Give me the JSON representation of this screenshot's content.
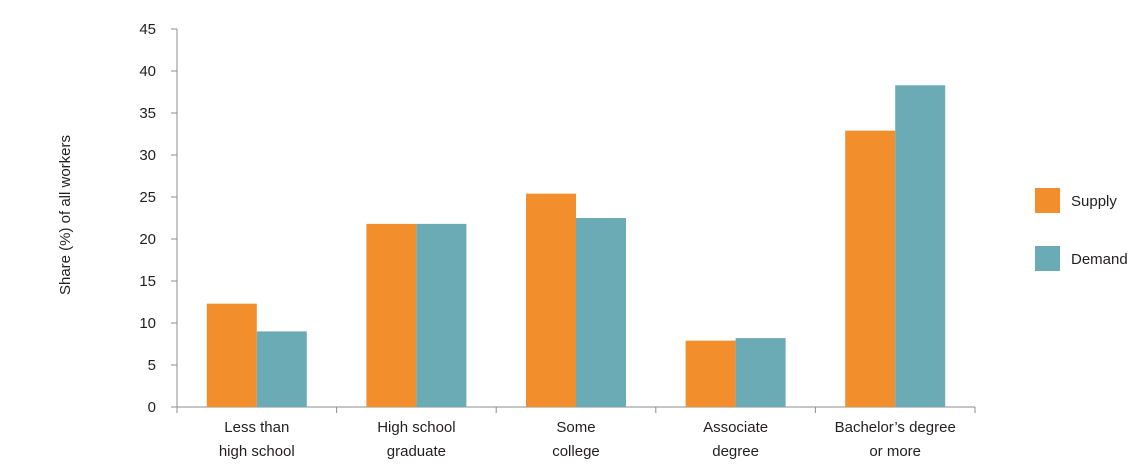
{
  "chart_data": {
    "type": "bar",
    "title": "",
    "xlabel": "",
    "ylabel": "Share (%) of all workers",
    "ylim": [
      0,
      45
    ],
    "yticks": [
      0,
      5,
      10,
      15,
      20,
      25,
      30,
      35,
      40,
      45
    ],
    "categories": [
      [
        "Less than",
        "high school"
      ],
      [
        "High school",
        "graduate"
      ],
      [
        "Some",
        "college"
      ],
      [
        "Associate",
        "degree"
      ],
      [
        "Bachelor’s degree",
        "or more"
      ]
    ],
    "series": [
      {
        "name": "Supply",
        "color": "#f28e2b",
        "values": [
          12.3,
          21.8,
          25.4,
          7.9,
          32.9
        ]
      },
      {
        "name": "Demand",
        "color": "#6aabb6",
        "values": [
          9.0,
          21.8,
          22.5,
          8.2,
          38.3
        ]
      }
    ],
    "grid": false,
    "legend_position": "right"
  }
}
